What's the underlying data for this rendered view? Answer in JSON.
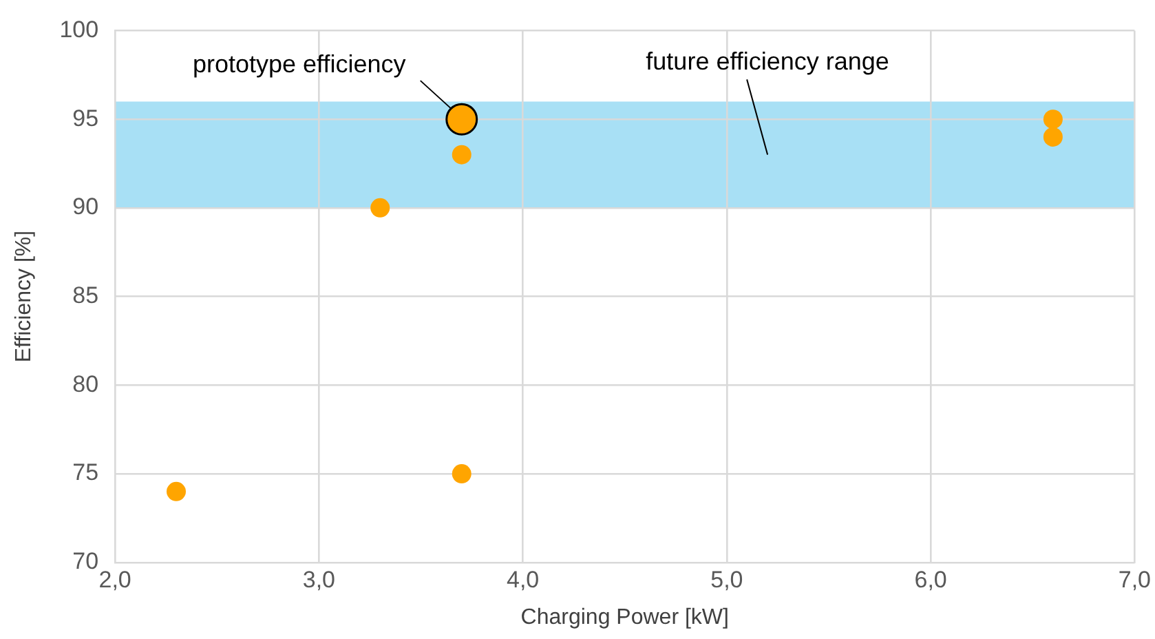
{
  "chart_data": {
    "type": "scatter",
    "xlabel": "Charging Power [kW]",
    "ylabel": "Efficiency [%]",
    "xlim": [
      2,
      7
    ],
    "xticks": [
      {
        "value": 2,
        "label": "2,0"
      },
      {
        "value": 3,
        "label": "3,0"
      },
      {
        "value": 4,
        "label": "4,0"
      },
      {
        "value": 5,
        "label": "5,0"
      },
      {
        "value": 6,
        "label": "6,0"
      },
      {
        "value": 7,
        "label": "7,0"
      }
    ],
    "ylim": [
      70,
      100
    ],
    "yticks": [
      70,
      75,
      80,
      85,
      90,
      95,
      100
    ],
    "grid": true,
    "legend": false,
    "marker": "circle",
    "series": [
      {
        "color": "#ffa500",
        "x": [
          2.3,
          3.3,
          3.7,
          3.7,
          6.6,
          6.6
        ],
        "values": [
          74,
          90,
          75,
          93,
          95,
          94
        ]
      },
      {
        "name": "prototype efficiency",
        "color": "#ffa500",
        "x": [
          3.7
        ],
        "values": [
          95
        ]
      }
    ],
    "bands": [
      {
        "axis": "y",
        "from": 90,
        "to": 96,
        "label": "future efficiency range",
        "color": "#a8e0f5"
      }
    ]
  }
}
